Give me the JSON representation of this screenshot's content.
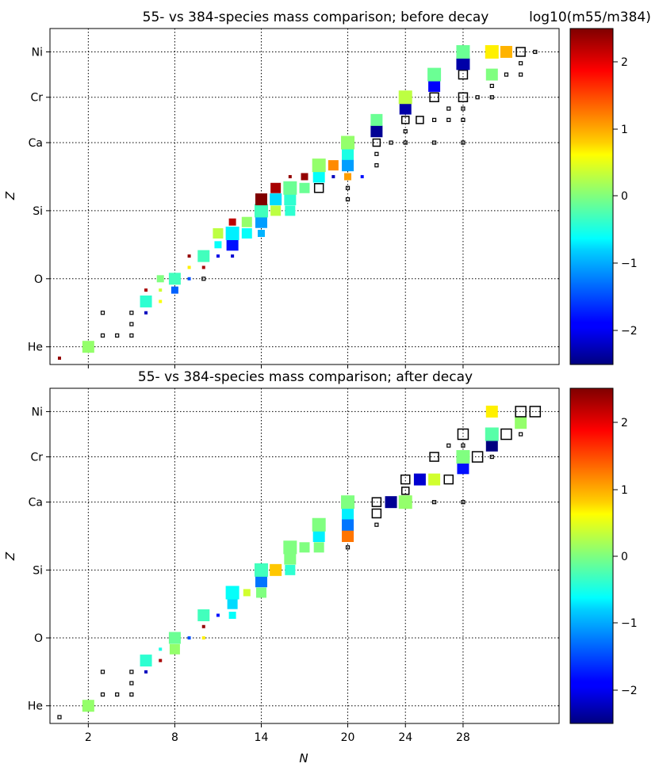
{
  "figure": {
    "colorbar_label": "log10(m55/m384)",
    "colorbar_ticks": [
      "2",
      "1",
      "0",
      "−1",
      "−2"
    ]
  },
  "chart_data": [
    {
      "type": "scatter",
      "title": "55- vs 384-species mass comparison; before decay",
      "xlabel": "",
      "ylabel": "Z",
      "x_ticks": [
        "2",
        "8",
        "14",
        "20",
        "24",
        "28"
      ],
      "y_ticks": [
        "He",
        "O",
        "Si",
        "Ca",
        "Cr",
        "Ni"
      ],
      "y_tick_values": [
        2,
        8,
        14,
        20,
        24,
        28
      ],
      "xlim": [
        0,
        34
      ],
      "ylim": [
        1,
        29.5
      ],
      "grid": true,
      "color_range": [
        -2.5,
        2.5
      ],
      "colormap": "jet",
      "note": "points: [N, Z, size-level 1-5, log10 ratio (null = hollow black square)]",
      "points": [
        [
          0,
          1,
          1,
          2.4
        ],
        [
          2,
          2,
          4,
          0.1
        ],
        [
          3,
          3,
          1,
          null
        ],
        [
          3,
          5,
          1,
          null
        ],
        [
          4,
          3,
          1,
          null
        ],
        [
          5,
          3,
          1,
          null
        ],
        [
          5,
          4,
          1,
          null
        ],
        [
          5,
          5,
          1,
          null
        ],
        [
          6,
          6,
          4,
          -0.4
        ],
        [
          6,
          5,
          1,
          -2.2
        ],
        [
          6,
          7,
          1,
          2.3
        ],
        [
          7,
          7,
          1,
          0.4
        ],
        [
          7,
          8,
          2,
          0.0
        ],
        [
          7,
          6,
          1,
          0.6
        ],
        [
          8,
          8,
          4,
          -0.3
        ],
        [
          8,
          7,
          2,
          -1.4
        ],
        [
          9,
          8,
          1,
          -1.5
        ],
        [
          9,
          9,
          1,
          0.7
        ],
        [
          9,
          10,
          1,
          2.4
        ],
        [
          10,
          8,
          1,
          null
        ],
        [
          10,
          9,
          1,
          2.3
        ],
        [
          10,
          10,
          4,
          -0.3
        ],
        [
          11,
          11,
          2,
          -0.6
        ],
        [
          11,
          10,
          1,
          -2.0
        ],
        [
          11,
          12,
          3,
          0.3
        ],
        [
          12,
          10,
          1,
          -2.1
        ],
        [
          12,
          11,
          4,
          -1.8
        ],
        [
          12,
          12,
          5,
          -0.7
        ],
        [
          12,
          13,
          2,
          2.2
        ],
        [
          13,
          12,
          3,
          -0.6
        ],
        [
          13,
          13,
          3,
          0.1
        ],
        [
          14,
          12,
          2,
          -1.0
        ],
        [
          14,
          13,
          4,
          -1.1
        ],
        [
          14,
          14,
          5,
          -0.3
        ],
        [
          14,
          15,
          4,
          2.5
        ],
        [
          15,
          14,
          3,
          0.3
        ],
        [
          15,
          15,
          4,
          -0.8
        ],
        [
          15,
          16,
          3,
          2.3
        ],
        [
          16,
          14,
          3,
          -0.4
        ],
        [
          16,
          15,
          4,
          -0.4
        ],
        [
          16,
          16,
          5,
          -0.1
        ],
        [
          16,
          17,
          1,
          2.4
        ],
        [
          17,
          16,
          3,
          -0.1
        ],
        [
          17,
          17,
          2,
          2.4
        ],
        [
          18,
          16,
          4,
          null
        ],
        [
          18,
          17,
          4,
          -0.6
        ],
        [
          18,
          18,
          5,
          0.1
        ],
        [
          19,
          18,
          3,
          1.2
        ],
        [
          19,
          17,
          1,
          -2.2
        ],
        [
          20,
          15,
          1,
          null
        ],
        [
          20,
          16,
          1,
          null
        ],
        [
          20,
          17,
          2,
          1.1
        ],
        [
          20,
          18,
          4,
          -1.1
        ],
        [
          20,
          19,
          4,
          -0.5
        ],
        [
          20,
          20,
          5,
          0.1
        ],
        [
          21,
          17,
          1,
          -1.8
        ],
        [
          22,
          18,
          1,
          null
        ],
        [
          22,
          19,
          1,
          null
        ],
        [
          22,
          20,
          3,
          null
        ],
        [
          22,
          21,
          4,
          -2.4
        ],
        [
          22,
          22,
          4,
          -0.1
        ],
        [
          23,
          20,
          1,
          null
        ],
        [
          24,
          20,
          1,
          null
        ],
        [
          24,
          21,
          1,
          null
        ],
        [
          24,
          22,
          3,
          null
        ],
        [
          24,
          23,
          4,
          -2.3
        ],
        [
          24,
          24,
          5,
          0.3
        ],
        [
          25,
          22,
          3,
          null
        ],
        [
          26,
          20,
          1,
          null
        ],
        [
          26,
          22,
          1,
          null
        ],
        [
          26,
          24,
          4,
          null
        ],
        [
          26,
          25,
          4,
          -1.9
        ],
        [
          26,
          26,
          5,
          -0.1
        ],
        [
          27,
          22,
          1,
          null
        ],
        [
          27,
          23,
          1,
          null
        ],
        [
          28,
          20,
          1,
          null
        ],
        [
          28,
          22,
          1,
          null
        ],
        [
          28,
          23,
          1,
          null
        ],
        [
          28,
          24,
          4,
          null
        ],
        [
          28,
          26,
          4,
          null
        ],
        [
          28,
          27,
          5,
          -2.3
        ],
        [
          28,
          28,
          5,
          -0.1
        ],
        [
          29,
          24,
          1,
          null
        ],
        [
          30,
          24,
          1,
          null
        ],
        [
          30,
          25,
          1,
          null
        ],
        [
          30,
          26,
          4,
          0.0
        ],
        [
          30,
          28,
          5,
          0.7
        ],
        [
          31,
          26,
          1,
          null
        ],
        [
          31,
          28,
          4,
          1.0
        ],
        [
          32,
          26,
          1,
          null
        ],
        [
          32,
          27,
          1,
          null
        ],
        [
          32,
          28,
          4,
          null
        ],
        [
          33,
          28,
          1,
          null
        ]
      ]
    },
    {
      "type": "scatter",
      "title": "55- vs 384-species mass comparison; after decay",
      "xlabel": "N",
      "ylabel": "Z",
      "x_ticks": [
        "2",
        "8",
        "14",
        "20",
        "24",
        "28"
      ],
      "y_ticks": [
        "He",
        "O",
        "Si",
        "Ca",
        "Cr",
        "Ni"
      ],
      "y_tick_values": [
        2,
        8,
        14,
        20,
        24,
        28
      ],
      "xlim": [
        0,
        34
      ],
      "ylim": [
        1,
        29.5
      ],
      "grid": true,
      "color_range": [
        -2.5,
        2.5
      ],
      "colormap": "jet",
      "note": "points: [N, Z, size-level 1-5, log10 ratio (null = hollow black square)]",
      "points": [
        [
          0,
          1,
          1,
          null
        ],
        [
          2,
          2,
          4,
          0.1
        ],
        [
          3,
          3,
          1,
          null
        ],
        [
          3,
          5,
          1,
          null
        ],
        [
          4,
          3,
          1,
          null
        ],
        [
          5,
          3,
          1,
          null
        ],
        [
          5,
          4,
          1,
          null
        ],
        [
          5,
          5,
          1,
          null
        ],
        [
          6,
          6,
          4,
          -0.4
        ],
        [
          6,
          5,
          1,
          -2.2
        ],
        [
          7,
          6,
          1,
          2.3
        ],
        [
          7,
          7,
          1,
          -0.5
        ],
        [
          8,
          7,
          3,
          0.1
        ],
        [
          8,
          8,
          4,
          -0.1
        ],
        [
          9,
          8,
          1,
          -1.5
        ],
        [
          10,
          8,
          1,
          0.7
        ],
        [
          10,
          9,
          1,
          2.4
        ],
        [
          10,
          10,
          4,
          -0.3
        ],
        [
          11,
          10,
          1,
          -1.8
        ],
        [
          12,
          10,
          2,
          -0.6
        ],
        [
          12,
          11,
          3,
          -0.8
        ],
        [
          12,
          12,
          5,
          -0.6
        ],
        [
          13,
          12,
          2,
          0.4
        ],
        [
          14,
          12,
          3,
          0.0
        ],
        [
          14,
          13,
          4,
          -1.3
        ],
        [
          14,
          14,
          5,
          -0.3
        ],
        [
          15,
          14,
          4,
          0.9
        ],
        [
          16,
          14,
          3,
          -0.4
        ],
        [
          16,
          15,
          4,
          0.0
        ],
        [
          16,
          16,
          5,
          0.0
        ],
        [
          17,
          16,
          3,
          0.0
        ],
        [
          18,
          16,
          3,
          0.0
        ],
        [
          18,
          17,
          4,
          -0.7
        ],
        [
          18,
          18,
          5,
          0.0
        ],
        [
          20,
          16,
          1,
          null
        ],
        [
          20,
          17,
          4,
          1.3
        ],
        [
          20,
          18,
          4,
          -1.3
        ],
        [
          20,
          19,
          4,
          -0.7
        ],
        [
          20,
          20,
          5,
          0.0
        ],
        [
          22,
          18,
          1,
          null
        ],
        [
          22,
          19,
          4,
          null
        ],
        [
          22,
          20,
          4,
          null
        ],
        [
          23,
          20,
          4,
          -2.4
        ],
        [
          24,
          20,
          5,
          0.1
        ],
        [
          24,
          21,
          3,
          null
        ],
        [
          24,
          22,
          4,
          null
        ],
        [
          25,
          22,
          4,
          -2.1
        ],
        [
          26,
          20,
          1,
          null
        ],
        [
          26,
          22,
          4,
          0.4
        ],
        [
          27,
          22,
          4,
          null
        ],
        [
          26,
          24,
          4,
          null
        ],
        [
          27,
          25,
          1,
          null
        ],
        [
          28,
          20,
          1,
          null
        ],
        [
          28,
          23,
          4,
          -1.8
        ],
        [
          28,
          24,
          5,
          0.0
        ],
        [
          28,
          25,
          1,
          null
        ],
        [
          28,
          26,
          5,
          null
        ],
        [
          29,
          24,
          5,
          null
        ],
        [
          30,
          24,
          1,
          null
        ],
        [
          30,
          25,
          4,
          -2.5
        ],
        [
          30,
          26,
          5,
          -0.2
        ],
        [
          30,
          28,
          4,
          0.7
        ],
        [
          31,
          26,
          5,
          null
        ],
        [
          32,
          26,
          1,
          null
        ],
        [
          32,
          27,
          4,
          0.1
        ],
        [
          32,
          28,
          5,
          null
        ],
        [
          33,
          28,
          5,
          null
        ]
      ]
    }
  ]
}
